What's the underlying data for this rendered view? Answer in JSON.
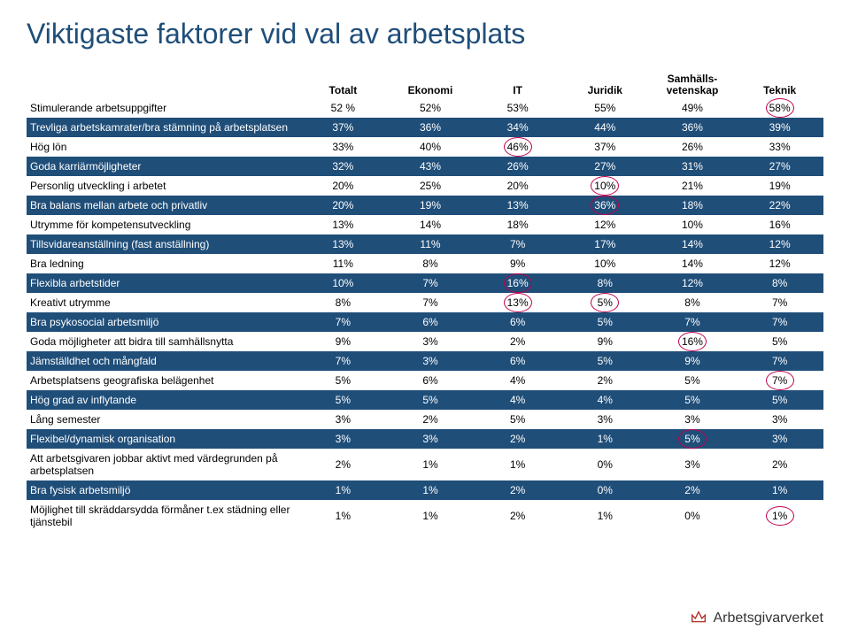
{
  "title": "Viktigaste faktorer vid val av arbetsplats",
  "columns": [
    "Totalt",
    "Ekonomi",
    "IT",
    "Juridik",
    "Samhälls-\nvetenskap",
    "Teknik"
  ],
  "rows": [
    {
      "label": "Stimulerande arbetsuppgifter",
      "vals": [
        "52 %",
        "52%",
        "53%",
        "55%",
        "49%",
        "58%"
      ],
      "shade": "light",
      "circles": [
        5
      ]
    },
    {
      "label": "Trevliga arbetskamrater/bra stämning på arbetsplatsen",
      "vals": [
        "37%",
        "36%",
        "34%",
        "44%",
        "36%",
        "39%"
      ],
      "shade": "dark",
      "circles": []
    },
    {
      "label": "Hög lön",
      "vals": [
        "33%",
        "40%",
        "46%",
        "37%",
        "26%",
        "33%"
      ],
      "shade": "light",
      "circles": [
        2
      ]
    },
    {
      "label": "Goda karriärmöjligheter",
      "vals": [
        "32%",
        "43%",
        "26%",
        "27%",
        "31%",
        "27%"
      ],
      "shade": "dark",
      "circles": []
    },
    {
      "label": "Personlig utveckling i arbetet",
      "vals": [
        "20%",
        "25%",
        "20%",
        "10%",
        "21%",
        "19%"
      ],
      "shade": "light",
      "circles": [
        3
      ]
    },
    {
      "label": "Bra balans mellan arbete och privatliv",
      "vals": [
        "20%",
        "19%",
        "13%",
        "36%",
        "18%",
        "22%"
      ],
      "shade": "dark",
      "circles": [
        3
      ]
    },
    {
      "label": "Utrymme för kompetensutveckling",
      "vals": [
        "13%",
        "14%",
        "18%",
        "12%",
        "10%",
        "16%"
      ],
      "shade": "light",
      "circles": []
    },
    {
      "label": "Tillsvidareanställning (fast anställning)",
      "vals": [
        "13%",
        "11%",
        "7%",
        "17%",
        "14%",
        "12%"
      ],
      "shade": "dark",
      "circles": []
    },
    {
      "label": "Bra ledning",
      "vals": [
        "11%",
        "8%",
        "9%",
        "10%",
        "14%",
        "12%"
      ],
      "shade": "light",
      "circles": []
    },
    {
      "label": "Flexibla arbetstider",
      "vals": [
        "10%",
        "7%",
        "16%",
        "8%",
        "12%",
        "8%"
      ],
      "shade": "dark",
      "circles": [
        2
      ]
    },
    {
      "label": "Kreativt utrymme",
      "vals": [
        "8%",
        "7%",
        "13%",
        "5%",
        "8%",
        "7%"
      ],
      "shade": "light",
      "circles": [
        2,
        3
      ]
    },
    {
      "label": "Bra psykosocial arbetsmiljö",
      "vals": [
        "7%",
        "6%",
        "6%",
        "5%",
        "7%",
        "7%"
      ],
      "shade": "dark",
      "circles": []
    },
    {
      "label": "Goda möjligheter att bidra till samhällsnytta",
      "vals": [
        "9%",
        "3%",
        "2%",
        "9%",
        "16%",
        "5%"
      ],
      "shade": "light",
      "circles": [
        4
      ]
    },
    {
      "label": "Jämställdhet och mångfald",
      "vals": [
        "7%",
        "3%",
        "6%",
        "5%",
        "9%",
        "7%"
      ],
      "shade": "dark",
      "circles": []
    },
    {
      "label": "Arbetsplatsens geografiska belägenhet",
      "vals": [
        "5%",
        "6%",
        "4%",
        "2%",
        "5%",
        "7%"
      ],
      "shade": "light",
      "circles": [
        5
      ]
    },
    {
      "label": "Hög grad av inflytande",
      "vals": [
        "5%",
        "5%",
        "4%",
        "4%",
        "5%",
        "5%"
      ],
      "shade": "dark",
      "circles": []
    },
    {
      "label": "Lång semester",
      "vals": [
        "3%",
        "2%",
        "5%",
        "3%",
        "3%",
        "3%"
      ],
      "shade": "light",
      "circles": []
    },
    {
      "label": "Flexibel/dynamisk organisation",
      "vals": [
        "3%",
        "3%",
        "2%",
        "1%",
        "5%",
        "3%"
      ],
      "shade": "dark",
      "circles": [
        4
      ]
    },
    {
      "label": "Att arbetsgivaren jobbar aktivt med värdegrunden på arbetsplatsen",
      "vals": [
        "2%",
        "1%",
        "1%",
        "0%",
        "3%",
        "2%"
      ],
      "shade": "light",
      "circles": []
    },
    {
      "label": "Bra fysisk arbetsmiljö",
      "vals": [
        "1%",
        "1%",
        "2%",
        "0%",
        "2%",
        "1%"
      ],
      "shade": "dark",
      "circles": []
    },
    {
      "label": "Möjlighet till skräddarsydda förmåner t.ex städning eller tjänstebil",
      "vals": [
        "1%",
        "1%",
        "2%",
        "1%",
        "0%",
        "1%"
      ],
      "shade": "light",
      "circles": [
        5
      ]
    }
  ],
  "logo_text": "Arbetsgivarverket",
  "colors": {
    "heading": "#1f4e79",
    "row_dark_bg": "#1f4e79",
    "row_dark_fg": "#ffffff",
    "row_light_bg": "#ffffff",
    "row_light_fg": "#000000",
    "circle": "#c00050",
    "logo_icon": "#b03028"
  }
}
